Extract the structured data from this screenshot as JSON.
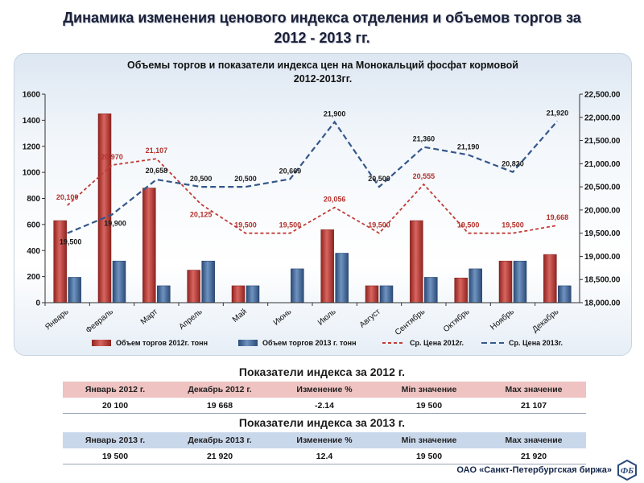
{
  "page": {
    "title_line1": "Динамика изменения  ценового индекса отделения и объемов торгов за",
    "title_line2": "2012 - 2013 гг."
  },
  "chart_data": {
    "type": "bar",
    "title_line1": "Объемы торгов и показатели индекса цен на Монокальций фосфат кормовой",
    "title_line2": "2012-2013гг.",
    "categories": [
      "Январь",
      "Февраль",
      "Март",
      "Апрель",
      "Май",
      "Июнь",
      "Июль",
      "Август",
      "Сентябрь",
      "Октябрь",
      "Ноябрь",
      "Декабрь"
    ],
    "left_axis": {
      "min": 0,
      "max": 1600,
      "ticks": [
        "0",
        "200",
        "400",
        "600",
        "800",
        "1000",
        "1200",
        "1400",
        "1600"
      ]
    },
    "right_axis": {
      "min": 18000,
      "max": 22500,
      "ticks": [
        "18,000.00",
        "18,500.00",
        "19,000.00",
        "19,500.00",
        "20,000.00",
        "20,500.00",
        "21,000.00",
        "21,500.00",
        "22,000.00",
        "22,500.00"
      ]
    },
    "series": [
      {
        "name": "Объем торгов 2012г. тонн",
        "kind": "bar",
        "axis": "left",
        "color": "#b33a36",
        "values": [
          630,
          1450,
          880,
          250,
          130,
          0,
          560,
          130,
          630,
          190,
          320,
          370
        ]
      },
      {
        "name": "Объем торгов 2013 г. тонн",
        "kind": "bar",
        "axis": "left",
        "color": "#3f6a9c",
        "values": [
          195,
          320,
          130,
          320,
          130,
          260,
          380,
          130,
          195,
          260,
          320,
          130
        ]
      },
      {
        "name": "Ср. Цена 2012г.",
        "kind": "line",
        "axis": "right",
        "color": "#c23b36",
        "values": [
          20100,
          20970,
          21107,
          20125,
          19500,
          19500,
          20056,
          19500,
          20555,
          19500,
          19500,
          19668
        ],
        "labels": [
          "20,100",
          "20,970",
          "21,107",
          "20,125",
          "19,500",
          "19,500",
          "20,056",
          "19,500",
          "20,555",
          "19,500",
          "19,500",
          "19,668"
        ]
      },
      {
        "name": "Ср. Цена 2013г.",
        "kind": "line",
        "axis": "right",
        "color": "#34578a",
        "values": [
          19500,
          19900,
          20658,
          20500,
          20500,
          20669,
          21900,
          20500,
          21360,
          21190,
          20820,
          21920
        ],
        "labels": [
          "19,500",
          "19,900",
          "20,658",
          "20,500",
          "20,500",
          "20,669",
          "21,900",
          "20,500",
          "21,360",
          "21,190",
          "20,820",
          "21,920"
        ]
      }
    ],
    "legend_position": "bottom"
  },
  "indices_2012": {
    "title": "Показатели индекса за 2012 г.",
    "headers": [
      "Январь 2012 г.",
      "Декабрь 2012 г.",
      "Изменение %",
      "Min значение",
      "Max значение"
    ],
    "values": [
      "20 100",
      "19 668",
      "-2.14",
      "19 500",
      "21 107"
    ],
    "change_color": "#c0392b"
  },
  "indices_2013": {
    "title": "Показатели индекса за 2013 г.",
    "headers": [
      "Январь 2013 г.",
      "Декабрь 2013 г.",
      "Изменение %",
      "Min значение",
      "Max значение"
    ],
    "values": [
      "19 500",
      "21 920",
      "12.4",
      "19 500",
      "21 920"
    ],
    "change_color": "#1d9a3c"
  },
  "footer": {
    "text": "ОАО «Санкт-Петербургская биржа»",
    "logo_icon": "spbex-logo-icon"
  }
}
